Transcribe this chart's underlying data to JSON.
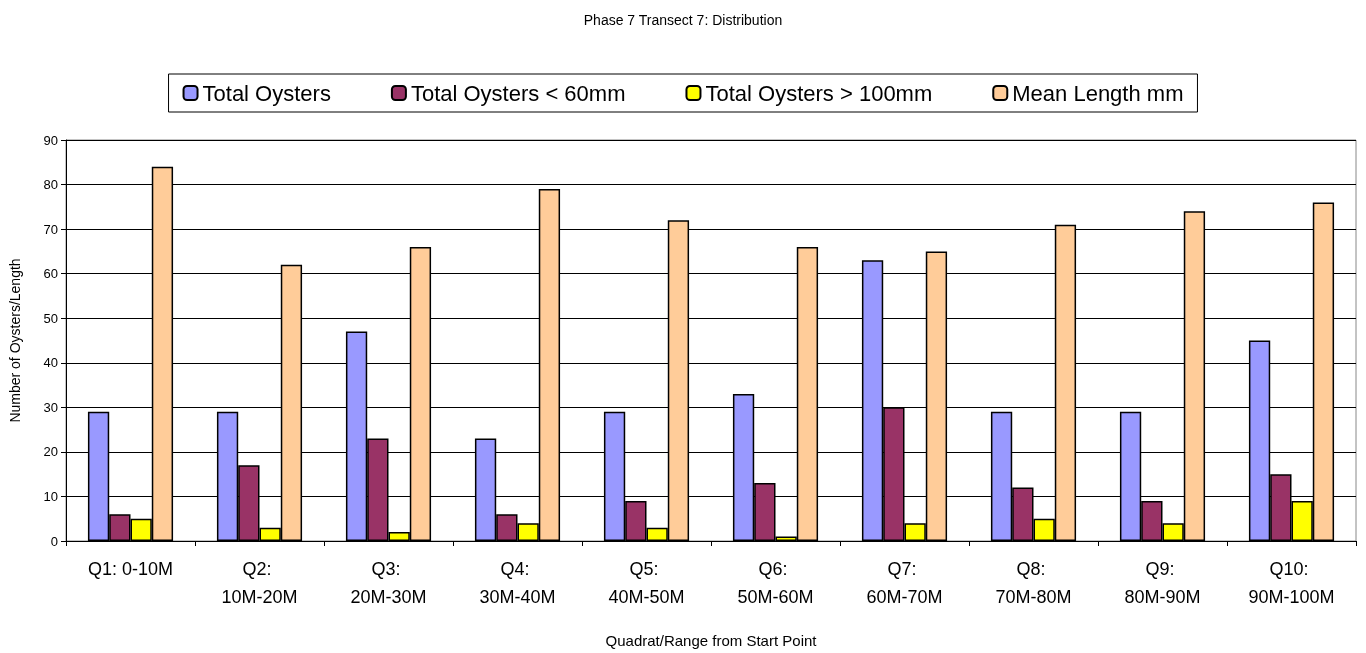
{
  "chart_data": {
    "type": "bar",
    "title": "Phase 7 Transect 7: Distribution",
    "xlabel": "Quadrat/Range from Start Point",
    "ylabel": "Number of Oysters/Length",
    "categories": [
      "Q1: 0-10M",
      "Q2: 10M-20M",
      "Q3: 20M-30M",
      "Q4: 30M-40M",
      "Q5: 40M-50M",
      "Q6: 50M-60M",
      "Q7: 60M-70M",
      "Q8: 70M-80M",
      "Q9: 80M-90M",
      "Q10: 90M-100M"
    ],
    "series": [
      {
        "name": "Total Oysters",
        "color": "#9999ff",
        "values": [
          29,
          29,
          47,
          23,
          29,
          33,
          63,
          29,
          29,
          45
        ]
      },
      {
        "name": "Total Oysters < 60mm",
        "color": "#993366",
        "values": [
          6,
          17,
          23,
          6,
          9,
          13,
          30,
          12,
          9,
          15
        ]
      },
      {
        "name": "Total Oysters > 100mm",
        "color": "#ffff00",
        "values": [
          5,
          3,
          2,
          4,
          3,
          1,
          4,
          5,
          4,
          9
        ]
      },
      {
        "name": "Mean Length mm",
        "color": "#ffcc99",
        "values": [
          84,
          62,
          66,
          79,
          72,
          66,
          65,
          71,
          74,
          76
        ]
      }
    ],
    "ylim": [
      0,
      90
    ],
    "yticks": [
      0,
      10,
      20,
      30,
      40,
      50,
      60,
      70,
      80,
      90
    ],
    "grid": "y",
    "legend": "top"
  }
}
